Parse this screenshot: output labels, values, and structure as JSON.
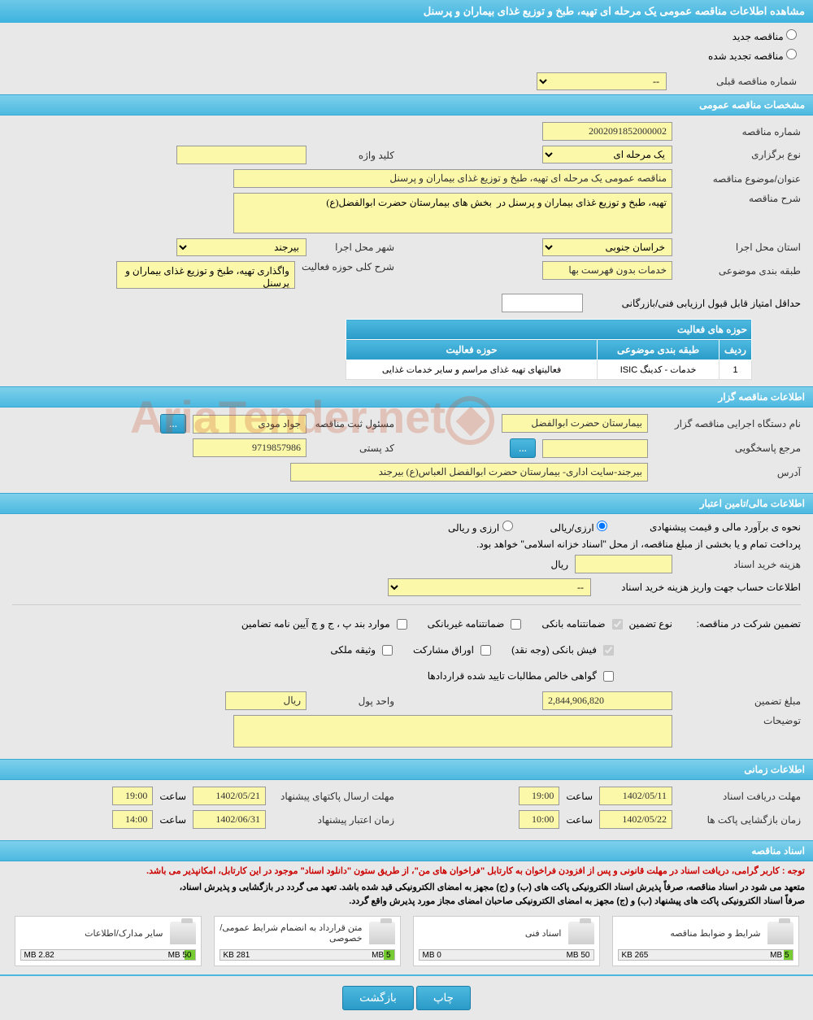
{
  "page_title": "مشاهده اطلاعات مناقصه عمومی یک مرحله ای تهیه، طبخ و توزیع غذای بیماران و پرسنل",
  "radio": {
    "new_tender": "مناقصه جدید",
    "renewed_tender": "مناقصه تجدید شده"
  },
  "prev_tender": {
    "label": "شماره مناقصه قبلی",
    "value": "--"
  },
  "sections": {
    "general": "مشخصات مناقصه عمومی",
    "organizer": "اطلاعات مناقصه گزار",
    "financial": "اطلاعات مالی/تامین اعتبار",
    "timing": "اطلاعات زمانی",
    "docs": "اسناد مناقصه",
    "activity_fields": "حوزه های فعالیت"
  },
  "general": {
    "tender_no_label": "شماره مناقصه",
    "tender_no": "2002091852000002",
    "holding_type_label": "نوع برگزاری",
    "holding_type": "یک مرحله ای",
    "keyword_label": "کلید واژه",
    "keyword": "",
    "subject_label": "عنوان/موضوع مناقصه",
    "subject": "مناقصه عمومی یک مرحله ای تهیه، طبخ و توزیع غذای بیماران و پرسنل",
    "desc_label": "شرح مناقصه",
    "desc": "تهیه، طبخ و توزیع غذای بیماران و پرسنل در  بخش های بیمارستان حضرت ابوالفضل(ع)",
    "province_label": "استان محل اجرا",
    "province": "خراسان جنوبی",
    "city_label": "شهر محل اجرا",
    "city": "بیرجند",
    "category_label": "طبقه بندی موضوعی",
    "category": "خدمات بدون فهرست بها",
    "activity_desc_label": "شرح کلی حوزه فعالیت",
    "activity_desc": "واگذاری تهیه، طبخ و توزیع غذای بیماران و پرسنل",
    "min_score_label": "حداقل امتیاز قابل قبول ارزیابی فنی/بازرگانی",
    "min_score": ""
  },
  "activity_table": {
    "col_row": "ردیف",
    "col_category": "طبقه بندی موضوعی",
    "col_field": "حوزه فعالیت",
    "rows": [
      {
        "idx": "1",
        "category": "خدمات - کدینگ ISIC",
        "field": "فعالیتهای تهیه غذای مراسم و سایر خدمات غذایی"
      }
    ]
  },
  "organizer": {
    "org_label": "نام دستگاه اجرایی مناقصه گزار",
    "org": "بیمارستان حضرت ابوالفضل",
    "manager_label": "مسئول ثبت مناقصه",
    "manager": "جواد مودی",
    "ellipsis": "...",
    "contact_label": "مرجع پاسخگویی",
    "contact": "",
    "postal_label": "کد پستی",
    "postal": "9719857986",
    "address_label": "آدرس",
    "address": "بیرجند-سایت اداری- بیمارستان حضرت ابوالفضل العباس(ع) بیرجند"
  },
  "financial": {
    "estimate_label": "نحوه ی برآورد مالی و قیمت پیشنهادی",
    "currency_rial": "ارزی/ریالی",
    "currency_foreign": "ارزی و ریالی",
    "treasury_note": "پرداخت تمام و یا بخشی از مبلغ مناقصه، از محل \"اسناد خزانه اسلامی\" خواهد بود.",
    "doc_cost_label": "هزینه خرید اسناد",
    "rial": "ریال",
    "account_label": "اطلاعات حساب جهت واریز هزینه خرید اسناد",
    "account": "--",
    "guarantee_label": "تضمین شرکت در مناقصه:",
    "guarantee_type_label": "نوع تضمین",
    "chk_bank_guarantee": "ضمانتنامه بانکی",
    "chk_nonbank_guarantee": "ضمانتنامه غیربانکی",
    "chk_regulation": "موارد بند پ ، ج و چ آیین نامه تضامین",
    "chk_cash": "فیش بانکی (وجه نقد)",
    "chk_bonds": "اوراق مشارکت",
    "chk_property": "وثیقه ملکی",
    "chk_certificate": "گواهی خالص مطالبات تایید شده قراردادها",
    "amount_label": "مبلغ تضمین",
    "amount": "2,844,906,820",
    "unit_label": "واحد پول",
    "unit": "ریال",
    "notes_label": "توضیحات"
  },
  "timing": {
    "receive_deadline_label": "مهلت دریافت اسناد",
    "receive_date": "1402/05/11",
    "time_label": "ساعت",
    "receive_time": "19:00",
    "submit_deadline_label": "مهلت ارسال پاکتهای پیشنهاد",
    "submit_date": "1402/05/21",
    "submit_time": "19:00",
    "open_label": "زمان بازگشایی پاکت ها",
    "open_date": "1402/05/22",
    "open_time": "10:00",
    "validity_label": "زمان اعتبار پیشنهاد",
    "validity_date": "1402/06/31",
    "validity_time": "14:00"
  },
  "notices": {
    "red": "توجه : کاربر گرامی، دریافت اسناد در مهلت قانونی و پس از افزودن فراخوان به کارتابل \"فراخوان های من\"، از طریق ستون \"دانلود اسناد\" موجود در این کارتابل، امکانپذیر می باشد.",
    "black1": "متعهد می شود در اسناد مناقصه، صرفاً پذیرش اسناد الکترونیکی پاکت های (ب) و (ج) مجهز به امضای الکترونیکی قید شده باشد. تعهد می گردد در بازگشایی و پذیرش اسناد،",
    "black2": "صرفاً اسناد الکترونیکی پاکت های پیشنهاد (ب) و (ج) مجهز به امضای الکترونیکی صاحبان امضای مجاز مورد پذیرش واقع گردد."
  },
  "docs": [
    {
      "title": "شرایط و ضوابط مناقصه",
      "used": "265 KB",
      "total": "5 MB",
      "pct": 5
    },
    {
      "title": "اسناد فنی",
      "used": "0 MB",
      "total": "50 MB",
      "pct": 0
    },
    {
      "title": "متن قرارداد به انضمام شرایط عمومی/خصوصی",
      "used": "281 KB",
      "total": "5 MB",
      "pct": 6
    },
    {
      "title": "سایر مدارک/اطلاعات",
      "used": "2.82 MB",
      "total": "50 MB",
      "pct": 6
    }
  ],
  "buttons": {
    "print": "چاپ",
    "back": "بازگشت"
  },
  "watermark": "AriaTender.net"
}
